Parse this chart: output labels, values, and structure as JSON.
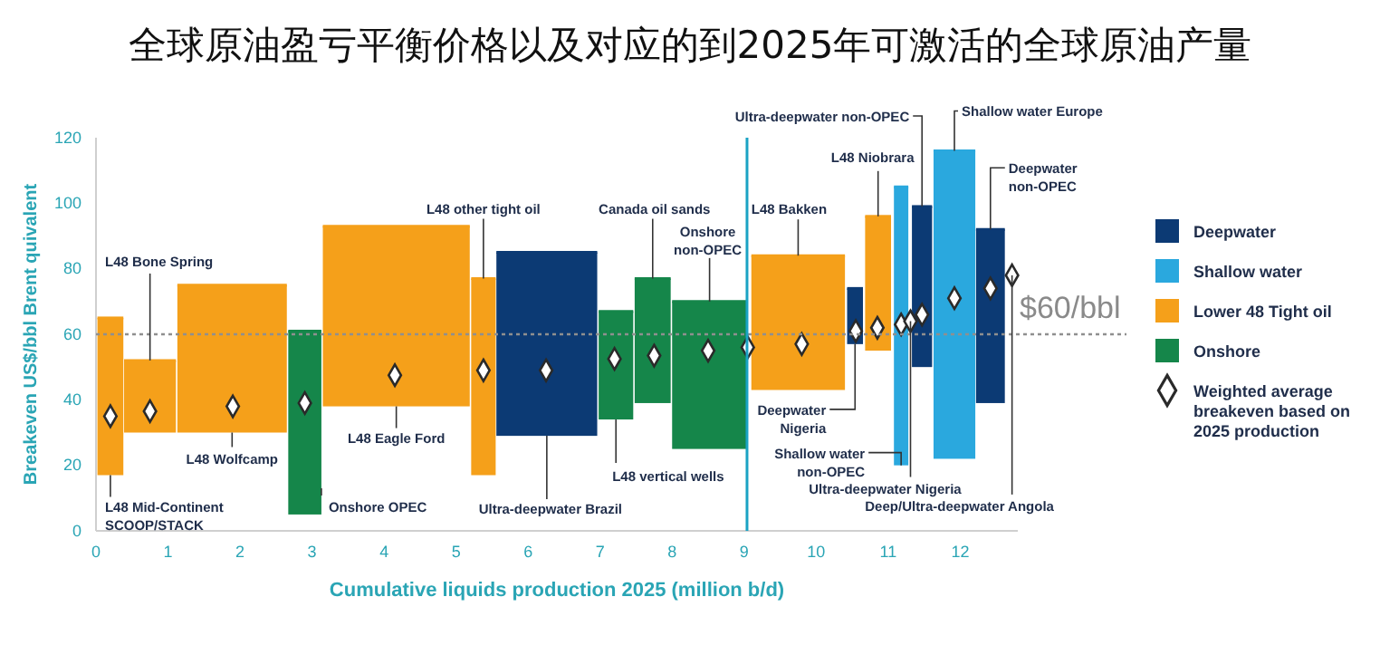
{
  "chart_data": {
    "type": "bar",
    "title": "全球原油盈亏平衡价格以及对应的到2025年可激活的全球原油产量",
    "xlabel": "Cumulative liquids production 2025 (million b/d)",
    "ylabel": "Breakeven US$/bbl Brent quivalent",
    "xlim": [
      0,
      12.8
    ],
    "xticks": [
      0,
      1,
      2,
      3,
      4,
      5,
      6,
      7,
      8,
      9,
      10,
      11,
      12
    ],
    "ylim": [
      0,
      120
    ],
    "yticks": [
      0,
      20,
      40,
      60,
      80,
      100,
      120
    ],
    "grid": false,
    "legend": "right",
    "series": [
      {
        "name": "Deepwater",
        "color": "#0c3a74",
        "x": [
          6.26,
          10.54,
          11.47,
          12.42
        ],
        "xerrors": [
          0.7,
          0.11,
          0.14,
          0.2
        ],
        "base": [
          29,
          57,
          50,
          39
        ],
        "values": [
          56,
          17,
          49,
          53
        ]
      },
      {
        "name": "Shallow water",
        "color": "#2aa8de",
        "x": [
          11.18,
          11.92
        ],
        "xerrors": [
          0.1,
          0.29
        ],
        "base": [
          20,
          22
        ],
        "values": [
          85,
          94
        ]
      },
      {
        "name": "Lower 48 Tight oil",
        "color": "#f5a01a",
        "x": [
          0.2,
          0.75,
          1.89,
          4.17,
          5.38,
          9.75,
          10.86
        ],
        "xerrors": [
          0.18,
          0.36,
          0.76,
          1.02,
          0.17,
          0.65,
          0.18
        ],
        "base": [
          17,
          30,
          30,
          38,
          17,
          43,
          55
        ],
        "values": [
          48,
          22,
          45,
          55,
          60,
          41,
          41
        ]
      },
      {
        "name": "Onshore",
        "color": "#15864a",
        "x": [
          2.9,
          7.22,
          7.73,
          8.52
        ],
        "xerrors": [
          0.23,
          0.24,
          0.25,
          0.52
        ],
        "base": [
          5,
          34,
          39,
          25
        ],
        "values": [
          56,
          33,
          38,
          45
        ]
      },
      {
        "name": "Weighted average breakeven based on 2025 production",
        "type": "scatter",
        "marker": "diamond",
        "color": "#2a2a2a",
        "x": [
          0.2,
          0.75,
          1.9,
          2.9,
          4.15,
          5.38,
          6.25,
          7.2,
          7.75,
          8.5,
          9.05,
          9.8,
          10.55,
          10.85,
          11.18,
          11.31,
          11.47,
          11.92,
          12.42,
          12.72
        ],
        "values": [
          35,
          36.5,
          38,
          39,
          47.5,
          49,
          49,
          52.5,
          53.5,
          55,
          56,
          57,
          61,
          62,
          63,
          64,
          66,
          71,
          74,
          78
        ]
      }
    ],
    "ref_lines": [
      {
        "axis": "y",
        "value": 60,
        "label": "$60/bbl",
        "color": "#8f8f8f",
        "line_style": "dotted"
      },
      {
        "axis": "x",
        "value": 9.04,
        "label": null,
        "color": "#1aa3c4",
        "line_style": "solid"
      }
    ],
    "annotations": [
      {
        "text": "L48 Mid-Continent\nSCOOP/STACK",
        "x": 0.2,
        "y": 17
      },
      {
        "text": "L48 Bone Spring",
        "x": 0.75,
        "y": 52
      },
      {
        "text": "L48 Wolfcamp",
        "x": 1.89,
        "y": 30
      },
      {
        "text": "Onshore OPEC",
        "x": 3.13,
        "y": 13
      },
      {
        "text": "L48 Eagle Ford",
        "x": 4.17,
        "y": 38
      },
      {
        "text": "L48 other tight oil",
        "x": 5.38,
        "y": 77
      },
      {
        "text": "Ultra-deepwater Brazil",
        "x": 6.26,
        "y": 29
      },
      {
        "text": "L48 vertical wells",
        "x": 7.22,
        "y": 34
      },
      {
        "text": "Canada oil sands",
        "x": 7.73,
        "y": 77
      },
      {
        "text": "Onshore\nnon-OPEC",
        "x": 8.52,
        "y": 70
      },
      {
        "text": "L48 Bakken",
        "x": 9.75,
        "y": 84
      },
      {
        "text": "Deepwater\nNigeria",
        "x": 10.54,
        "y": 57
      },
      {
        "text": "L48 Niobrara",
        "x": 10.86,
        "y": 96
      },
      {
        "text": "Shallow water\nnon-OPEC",
        "x": 11.18,
        "y": 20
      },
      {
        "text": "Ultra-deepwater Nigeria",
        "x": 11.31,
        "y": 64
      },
      {
        "text": "Ultra-deepwater non-OPEC",
        "x": 11.47,
        "y": 99
      },
      {
        "text": "Shallow water Europe",
        "x": 11.92,
        "y": 116
      },
      {
        "text": "Deepwater\nnon-OPEC",
        "x": 12.42,
        "y": 92
      },
      {
        "text": "Deep/Ultra-deepwater Angola",
        "x": 12.72,
        "y": 78
      }
    ]
  }
}
